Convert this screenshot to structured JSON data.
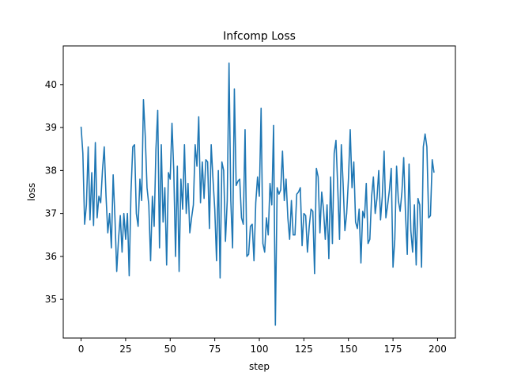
{
  "chart_data": {
    "type": "line",
    "title": "Infcomp Loss",
    "xlabel": "step",
    "ylabel": "loss",
    "xlim": [
      -10,
      210
    ],
    "ylim": [
      34.1,
      40.9
    ],
    "xticks": [
      0,
      25,
      50,
      75,
      100,
      125,
      150,
      175,
      200
    ],
    "yticks": [
      35,
      36,
      37,
      38,
      39,
      40
    ],
    "grid": false,
    "series": [
      {
        "color": "#1f77b4",
        "values": [
          39.02,
          38.4,
          36.75,
          37.2,
          38.55,
          36.85,
          37.95,
          36.72,
          38.65,
          36.9,
          37.4,
          37.25,
          38.0,
          38.55,
          37.4,
          36.55,
          37.0,
          36.2,
          37.9,
          36.9,
          35.65,
          36.4,
          36.95,
          36.1,
          37.0,
          36.4,
          37.0,
          35.55,
          37.5,
          38.55,
          38.6,
          37.0,
          36.7,
          37.8,
          37.3,
          39.65,
          38.8,
          37.6,
          37.2,
          35.9,
          37.4,
          36.7,
          38.5,
          39.4,
          36.2,
          38.6,
          36.8,
          37.6,
          35.8,
          37.95,
          37.8,
          39.1,
          38.0,
          36.0,
          38.1,
          35.65,
          37.8,
          37.1,
          38.6,
          37.0,
          37.7,
          36.55,
          36.9,
          37.2,
          38.6,
          38.1,
          39.25,
          37.25,
          38.2,
          37.35,
          38.25,
          38.2,
          36.65,
          38.6,
          37.8,
          37.1,
          35.9,
          38.0,
          35.5,
          38.2,
          38.0,
          36.35,
          37.3,
          40.5,
          37.3,
          36.2,
          39.9,
          37.65,
          37.75,
          37.8,
          36.9,
          36.75,
          38.95,
          36.0,
          36.05,
          36.7,
          36.75,
          35.9,
          37.25,
          37.85,
          37.4,
          39.45,
          36.3,
          36.1,
          36.9,
          36.5,
          37.7,
          37.2,
          39.05,
          34.4,
          37.6,
          37.45,
          37.55,
          38.45,
          37.3,
          37.8,
          36.9,
          36.4,
          37.3,
          36.5,
          36.5,
          37.45,
          37.5,
          37.6,
          36.25,
          37.0,
          36.95,
          36.1,
          36.7,
          37.1,
          37.05,
          35.6,
          38.05,
          37.85,
          36.55,
          37.5,
          37.1,
          36.4,
          37.2,
          35.95,
          37.85,
          36.3,
          38.4,
          38.7,
          37.6,
          36.4,
          38.6,
          37.7,
          36.6,
          37.0,
          37.8,
          38.95,
          37.6,
          38.2,
          36.8,
          36.65,
          37.1,
          35.85,
          37.05,
          36.9,
          37.7,
          36.3,
          36.4,
          37.4,
          37.85,
          37.0,
          37.35,
          38.0,
          36.85,
          37.4,
          38.45,
          36.9,
          37.2,
          37.55,
          38.05,
          35.75,
          36.4,
          38.1,
          37.3,
          37.05,
          37.5,
          38.3,
          37.0,
          36.05,
          38.15,
          36.6,
          36.1,
          37.2,
          35.8,
          37.35,
          37.2,
          35.75,
          38.55,
          38.85,
          38.55,
          36.9,
          36.95,
          38.25,
          37.95
        ]
      }
    ]
  }
}
